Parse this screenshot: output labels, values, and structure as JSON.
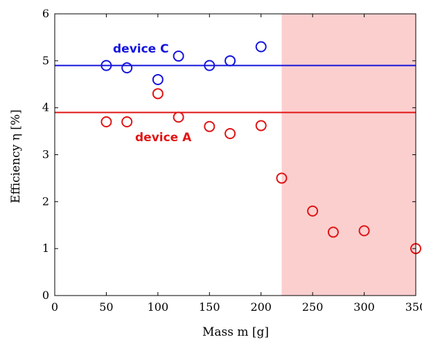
{
  "chart_data": {
    "type": "scatter",
    "title": "",
    "xlabel": "Mass m [g]",
    "ylabel": "Efficiency η [%]",
    "xlim": [
      0,
      350
    ],
    "ylim": [
      0,
      6
    ],
    "xticks": [
      "0",
      "50",
      "100",
      "150",
      "200",
      "250",
      "300",
      "350"
    ],
    "yticks": [
      "0",
      "1",
      "2",
      "3",
      "4",
      "5",
      "6"
    ],
    "grid": false,
    "shaded_region": {
      "x": [
        220,
        350
      ],
      "color": "#fccfcf"
    },
    "series": [
      {
        "name": "device C",
        "color": "#1414dc",
        "reference_line": 4.9,
        "points": [
          {
            "x": 50,
            "y": 4.9
          },
          {
            "x": 70,
            "y": 4.85
          },
          {
            "x": 100,
            "y": 4.6
          },
          {
            "x": 120,
            "y": 5.1
          },
          {
            "x": 150,
            "y": 4.9
          },
          {
            "x": 170,
            "y": 5.0
          },
          {
            "x": 200,
            "y": 5.3
          }
        ]
      },
      {
        "name": "device A",
        "color": "#e01414",
        "reference_line": 3.9,
        "points": [
          {
            "x": 50,
            "y": 3.7
          },
          {
            "x": 70,
            "y": 3.7
          },
          {
            "x": 100,
            "y": 4.3
          },
          {
            "x": 120,
            "y": 3.8
          },
          {
            "x": 150,
            "y": 3.6
          },
          {
            "x": 170,
            "y": 3.45
          },
          {
            "x": 200,
            "y": 3.62
          },
          {
            "x": 220,
            "y": 2.5
          },
          {
            "x": 250,
            "y": 1.8
          },
          {
            "x": 270,
            "y": 1.35
          },
          {
            "x": 300,
            "y": 1.38
          },
          {
            "x": 350,
            "y": 1.0
          }
        ]
      }
    ]
  }
}
